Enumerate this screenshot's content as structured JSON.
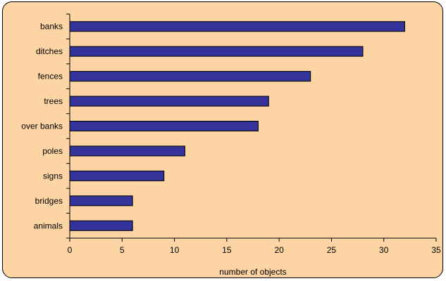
{
  "chart_data": {
    "type": "bar",
    "orientation": "horizontal",
    "categories": [
      "banks",
      "ditches",
      "fences",
      "trees",
      "over banks",
      "poles",
      "signs",
      "bridges",
      "animals"
    ],
    "values": [
      32,
      28,
      23,
      19,
      18,
      11,
      9,
      6,
      6
    ],
    "title": "",
    "xlabel": "number of objects",
    "ylabel": "",
    "xlim": [
      0,
      35
    ],
    "x_ticks": [
      0,
      5,
      10,
      15,
      20,
      25,
      30,
      35
    ],
    "grid": false,
    "legend": "none",
    "colors": {
      "bar_fill": "#333399",
      "bar_stroke": "#000000",
      "background": "#fdd5a4",
      "axis": "#000000"
    }
  }
}
